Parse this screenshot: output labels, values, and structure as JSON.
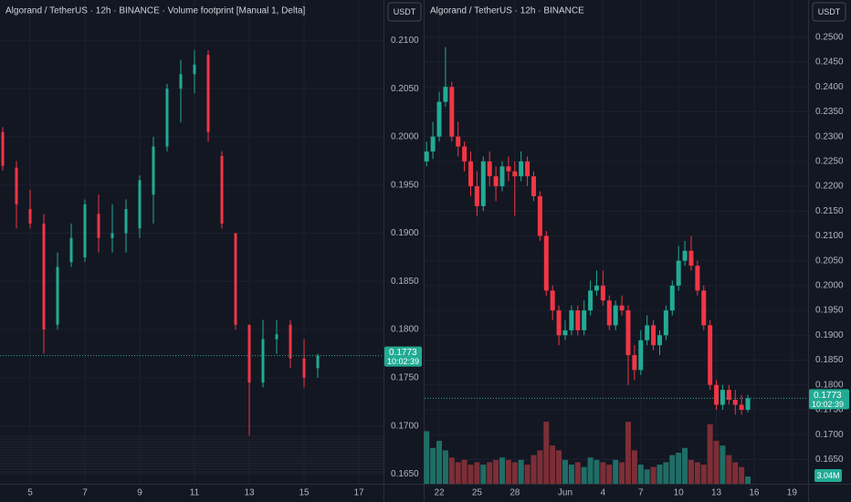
{
  "chart_data": [
    {
      "type": "candlestick",
      "title": "Algorand / TetherUS · 12h · BINANCE · Volume footprint [Manual 1, Delta]",
      "currency": "USDT",
      "x": [
        4.0,
        4.5,
        5.0,
        5.5,
        6.0,
        6.5,
        7.0,
        7.5,
        8.0,
        8.5,
        9.0,
        9.5,
        10.0,
        10.5,
        11.0,
        11.5,
        12.0,
        12.5,
        13.0,
        13.5,
        14.0,
        14.5,
        15.0,
        15.5
      ],
      "open": [
        0.2005,
        0.1968,
        0.1925,
        0.191,
        0.1805,
        0.187,
        0.1875,
        0.192,
        0.1895,
        0.19,
        0.1905,
        0.194,
        0.199,
        0.205,
        0.2065,
        0.2085,
        0.198,
        0.19,
        0.1805,
        0.1745,
        0.179,
        0.1805,
        0.177,
        0.176
      ],
      "high": [
        0.201,
        0.1975,
        0.1945,
        0.192,
        0.188,
        0.191,
        0.1935,
        0.194,
        0.193,
        0.1935,
        0.196,
        0.2,
        0.2055,
        0.208,
        0.209,
        0.209,
        0.1985,
        0.19,
        0.1805,
        0.181,
        0.181,
        0.181,
        0.179,
        0.1775
      ],
      "low": [
        0.1965,
        0.1905,
        0.1905,
        0.1775,
        0.18,
        0.1865,
        0.187,
        0.188,
        0.188,
        0.188,
        0.1895,
        0.191,
        0.1985,
        0.2015,
        0.2045,
        0.1995,
        0.1905,
        0.18,
        0.169,
        0.174,
        0.1775,
        0.176,
        0.174,
        0.175
      ],
      "close": [
        0.197,
        0.193,
        0.191,
        0.18,
        0.1865,
        0.1895,
        0.193,
        0.1895,
        0.19,
        0.1925,
        0.1955,
        0.199,
        0.205,
        0.2065,
        0.2075,
        0.2005,
        0.191,
        0.1805,
        0.1745,
        0.179,
        0.1795,
        0.177,
        0.175,
        0.1773
      ],
      "up_color": "#22ab94",
      "down_color": "#f23645",
      "xlim": [
        3.9,
        17.9
      ],
      "xticks": [
        5,
        7,
        9,
        11,
        13,
        15,
        17
      ],
      "ylim": [
        0.164,
        0.2142
      ],
      "yticks": [
        {
          "value": 0.165,
          "label": "0.1650"
        },
        {
          "value": 0.17,
          "label": "0.1700"
        },
        {
          "value": 0.175,
          "label": "0.1750"
        },
        {
          "value": 0.18,
          "label": "0.1800"
        },
        {
          "value": 0.185,
          "label": "0.1850"
        },
        {
          "value": 0.19,
          "label": "0.1900"
        },
        {
          "value": 0.195,
          "label": "0.1950"
        },
        {
          "value": 0.2,
          "label": "0.2000"
        },
        {
          "value": 0.205,
          "label": "0.2050"
        },
        {
          "value": 0.21,
          "label": "0.2100"
        }
      ],
      "last_price": 0.1773,
      "countdown": "10:02:39",
      "grid": true
    },
    {
      "type": "candlestick",
      "title": "Algorand / TetherUS · 12h · BINANCE",
      "currency": "USDT",
      "x": [
        -1.0,
        -0.5,
        0,
        0.5,
        1.0,
        1.5,
        2.0,
        2.5,
        3.0,
        3.5,
        4.0,
        4.5,
        5.0,
        5.5,
        6.0,
        6.5,
        7.0,
        7.5,
        8.0,
        8.5,
        9.0,
        9.5,
        10.0,
        10.5,
        11.0,
        11.5,
        12.0,
        12.5,
        13.0,
        13.5,
        14.0,
        14.5,
        15.0,
        15.5,
        16.0,
        16.5,
        17.0,
        17.5,
        18.0,
        18.5,
        19.0,
        19.5,
        20.0,
        20.5,
        21.0,
        21.5,
        22.0,
        22.5,
        23.0,
        23.5,
        24.0,
        24.5
      ],
      "open": [
        0.225,
        0.227,
        0.23,
        0.237,
        0.24,
        0.23,
        0.228,
        0.225,
        0.22,
        0.216,
        0.225,
        0.222,
        0.22,
        0.224,
        0.223,
        0.222,
        0.225,
        0.222,
        0.218,
        0.21,
        0.199,
        0.195,
        0.19,
        0.191,
        0.195,
        0.191,
        0.195,
        0.199,
        0.2,
        0.197,
        0.192,
        0.196,
        0.195,
        0.186,
        0.183,
        0.189,
        0.192,
        0.188,
        0.19,
        0.195,
        0.2,
        0.205,
        0.207,
        0.204,
        0.199,
        0.192,
        0.18,
        0.176,
        0.179,
        0.177,
        0.176,
        0.175
      ],
      "high": [
        0.229,
        0.233,
        0.239,
        0.248,
        0.241,
        0.233,
        0.229,
        0.227,
        0.223,
        0.226,
        0.227,
        0.224,
        0.225,
        0.226,
        0.225,
        0.227,
        0.226,
        0.223,
        0.219,
        0.211,
        0.2,
        0.196,
        0.193,
        0.196,
        0.196,
        0.197,
        0.201,
        0.203,
        0.203,
        0.198,
        0.197,
        0.198,
        0.196,
        0.188,
        0.191,
        0.194,
        0.193,
        0.191,
        0.196,
        0.201,
        0.208,
        0.209,
        0.21,
        0.205,
        0.2,
        0.193,
        0.181,
        0.18,
        0.18,
        0.179,
        0.178,
        0.178
      ],
      "low": [
        0.224,
        0.2255,
        0.229,
        0.236,
        0.229,
        0.226,
        0.223,
        0.218,
        0.214,
        0.215,
        0.22,
        0.217,
        0.219,
        0.221,
        0.214,
        0.221,
        0.22,
        0.217,
        0.209,
        0.198,
        0.193,
        0.188,
        0.189,
        0.19,
        0.19,
        0.19,
        0.194,
        0.198,
        0.196,
        0.191,
        0.191,
        0.194,
        0.18,
        0.181,
        0.182,
        0.188,
        0.187,
        0.186,
        0.189,
        0.194,
        0.199,
        0.204,
        0.203,
        0.198,
        0.191,
        0.179,
        0.175,
        0.175,
        0.176,
        0.174,
        0.174,
        0.1745
      ],
      "close": [
        0.227,
        0.23,
        0.237,
        0.24,
        0.23,
        0.228,
        0.225,
        0.22,
        0.216,
        0.225,
        0.222,
        0.22,
        0.224,
        0.223,
        0.222,
        0.225,
        0.222,
        0.218,
        0.21,
        0.199,
        0.195,
        0.19,
        0.191,
        0.195,
        0.191,
        0.195,
        0.199,
        0.2,
        0.197,
        0.192,
        0.196,
        0.195,
        0.186,
        0.183,
        0.189,
        0.192,
        0.188,
        0.19,
        0.195,
        0.2,
        0.205,
        0.207,
        0.204,
        0.199,
        0.192,
        0.18,
        0.176,
        0.179,
        0.177,
        0.176,
        0.175,
        0.1773
      ],
      "volume": [
        22000000,
        15000000,
        18000000,
        14000000,
        11000000,
        9000000,
        10000000,
        8000000,
        9000000,
        8000000,
        9000000,
        10000000,
        11000000,
        10000000,
        9000000,
        10000000,
        8000000,
        12000000,
        14000000,
        26000000,
        16000000,
        14000000,
        10000000,
        8000000,
        9000000,
        7000000,
        11000000,
        10000000,
        9000000,
        8000000,
        10000000,
        9000000,
        26000000,
        14000000,
        8000000,
        6000000,
        7000000,
        8000000,
        9000000,
        12000000,
        13000000,
        15000000,
        10000000,
        9000000,
        8000000,
        25000000,
        18000000,
        16000000,
        12000000,
        9000000,
        7000000,
        3040000
      ],
      "volume_labels": [
        null,
        null,
        null,
        null,
        null,
        null,
        null,
        null,
        null,
        null,
        null,
        null,
        null,
        null,
        null,
        null,
        null,
        null,
        null,
        null,
        null,
        null,
        null,
        null,
        null,
        null,
        null,
        null,
        null,
        null,
        null,
        null,
        null,
        null,
        null,
        null,
        null,
        null,
        null,
        null,
        null,
        null,
        null,
        null,
        null,
        null,
        null,
        null,
        null,
        null,
        null,
        "3.04M"
      ],
      "up_color": "#22ab94",
      "down_color": "#f23645",
      "volume_up_color": "#1f6e66",
      "volume_down_color": "#7d2e36",
      "xlim": [
        -1.16,
        29.28
      ],
      "xticks": [
        {
          "value": 0,
          "label": "22"
        },
        {
          "value": 3,
          "label": "25"
        },
        {
          "value": 6,
          "label": "28"
        },
        {
          "value": 10,
          "label": "Jun"
        },
        {
          "value": 13,
          "label": "4"
        },
        {
          "value": 16,
          "label": "7"
        },
        {
          "value": 19,
          "label": "10"
        },
        {
          "value": 22,
          "label": "13"
        },
        {
          "value": 25,
          "label": "16"
        },
        {
          "value": 28,
          "label": "19"
        }
      ],
      "ylim": [
        0.1601,
        0.2575
      ],
      "yticks": [
        {
          "value": 0.165,
          "label": "0.1650"
        },
        {
          "value": 0.17,
          "label": "0.1700"
        },
        {
          "value": 0.175,
          "label": "0.1750"
        },
        {
          "value": 0.18,
          "label": "0.1800"
        },
        {
          "value": 0.185,
          "label": "0.1850"
        },
        {
          "value": 0.19,
          "label": "0.1900"
        },
        {
          "value": 0.195,
          "label": "0.1950"
        },
        {
          "value": 0.2,
          "label": "0.2000"
        },
        {
          "value": 0.205,
          "label": "0.2050"
        },
        {
          "value": 0.21,
          "label": "0.2100"
        },
        {
          "value": 0.215,
          "label": "0.2150"
        },
        {
          "value": 0.22,
          "label": "0.2200"
        },
        {
          "value": 0.225,
          "label": "0.2250"
        },
        {
          "value": 0.23,
          "label": "0.2300"
        },
        {
          "value": 0.235,
          "label": "0.2350"
        },
        {
          "value": 0.24,
          "label": "0.2400"
        },
        {
          "value": 0.245,
          "label": "0.2450"
        },
        {
          "value": 0.25,
          "label": "0.2500"
        }
      ],
      "last_price": 0.1773,
      "countdown": "10:02:39",
      "grid": true
    }
  ]
}
